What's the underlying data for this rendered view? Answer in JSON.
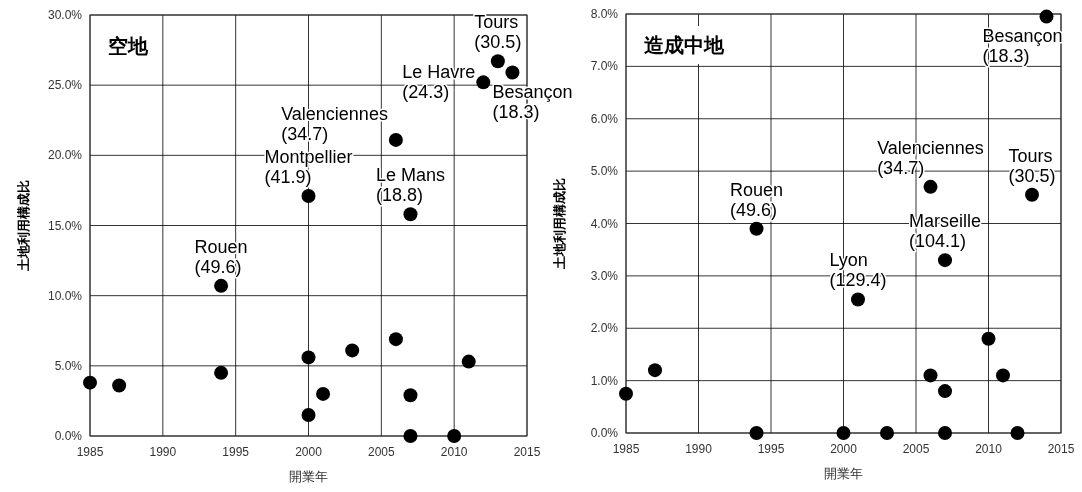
{
  "chart_data": [
    {
      "type": "scatter",
      "title": "空地",
      "xlabel": "開業年",
      "ylabel": "土地利用構成比",
      "marker": "circle",
      "grid": true,
      "xlim": [
        1985,
        2015
      ],
      "xticks": [
        1985,
        1990,
        1995,
        2000,
        2005,
        2010,
        2015
      ],
      "ylim": [
        0,
        30
      ],
      "yticks": [
        {
          "value": 0,
          "label": "0.0%"
        },
        {
          "value": 5,
          "label": "5.0%"
        },
        {
          "value": 10,
          "label": "10.0%"
        },
        {
          "value": 15,
          "label": "15.0%"
        },
        {
          "value": 20,
          "label": "20.0%"
        },
        {
          "value": 25,
          "label": "25.0%"
        },
        {
          "value": 30,
          "label": "30.0%"
        }
      ],
      "series": [
        {
          "color": "#000000",
          "x": [
            1985,
            1987,
            1994,
            1994,
            2000,
            2000,
            2000,
            2001,
            2003,
            2006,
            2006,
            2007,
            2007,
            2007,
            2010,
            2011,
            2012,
            2013,
            2014
          ],
          "values": [
            3.8,
            3.6,
            4.5,
            10.7,
            5.6,
            1.5,
            17.1,
            3.0,
            6.1,
            6.9,
            21.1,
            15.8,
            2.9,
            0,
            0,
            5.3,
            25.2,
            26.7,
            25.9
          ]
        }
      ],
      "annotations": [
        {
          "text": "Rouen\n(49.6)",
          "x": 1994,
          "y": 10.7
        },
        {
          "text": "Montpellier\n(41.9)",
          "x": 2000,
          "y": 17.1
        },
        {
          "text": "Valenciennes\n(34.7)",
          "x": 2006,
          "y": 21.1
        },
        {
          "text": "Le Mans\n(18.8)",
          "x": 2007,
          "y": 15.8
        },
        {
          "text": "Tours\n(30.5)",
          "x": 2013,
          "y": 26.7
        },
        {
          "text": "Le Havre\n(24.3)",
          "x": 2012,
          "y": 25.2
        },
        {
          "text": "Besançon\n(18.3)",
          "x": 2014,
          "y": 25.9
        }
      ]
    },
    {
      "type": "scatter",
      "title": "造成中地",
      "xlabel": "開業年",
      "ylabel": "土地利用構成比",
      "marker": "circle",
      "grid": true,
      "xlim": [
        1985,
        2015
      ],
      "xticks": [
        1985,
        1990,
        1995,
        2000,
        2005,
        2010,
        2015
      ],
      "ylim": [
        0,
        8
      ],
      "yticks": [
        {
          "value": 0,
          "label": "0.0%"
        },
        {
          "value": 1,
          "label": "1.0%"
        },
        {
          "value": 2,
          "label": "2.0%"
        },
        {
          "value": 3,
          "label": "3.0%"
        },
        {
          "value": 4,
          "label": "4.0%"
        },
        {
          "value": 5,
          "label": "5.0%"
        },
        {
          "value": 6,
          "label": "6.0%"
        },
        {
          "value": 7,
          "label": "7.0%"
        },
        {
          "value": 8,
          "label": "8.0%"
        }
      ],
      "series": [
        {
          "color": "#000000",
          "x": [
            1985,
            1987,
            1994,
            1994,
            2000,
            2001,
            2003,
            2006,
            2006,
            2007,
            2007,
            2007,
            2010,
            2011,
            2012,
            2013,
            2014
          ],
          "values": [
            0.75,
            1.2,
            0,
            3.9,
            0,
            2.55,
            0,
            1.1,
            4.7,
            0.8,
            0,
            3.3,
            1.8,
            1.1,
            0,
            4.55,
            7.95
          ]
        }
      ],
      "annotations": [
        {
          "text": "Rouen\n(49.6)",
          "x": 1994,
          "y": 3.9
        },
        {
          "text": "Lyon\n(129.4)",
          "x": 2001,
          "y": 2.55
        },
        {
          "text": "Valenciennes\n(34.7)",
          "x": 2006,
          "y": 4.7
        },
        {
          "text": "Marseille\n(104.1)",
          "x": 2007,
          "y": 3.3
        },
        {
          "text": "Tours\n(30.5)",
          "x": 2013,
          "y": 4.55
        },
        {
          "text": "Besançon\n(18.3)",
          "x": 2014,
          "y": 7.95
        }
      ]
    }
  ]
}
